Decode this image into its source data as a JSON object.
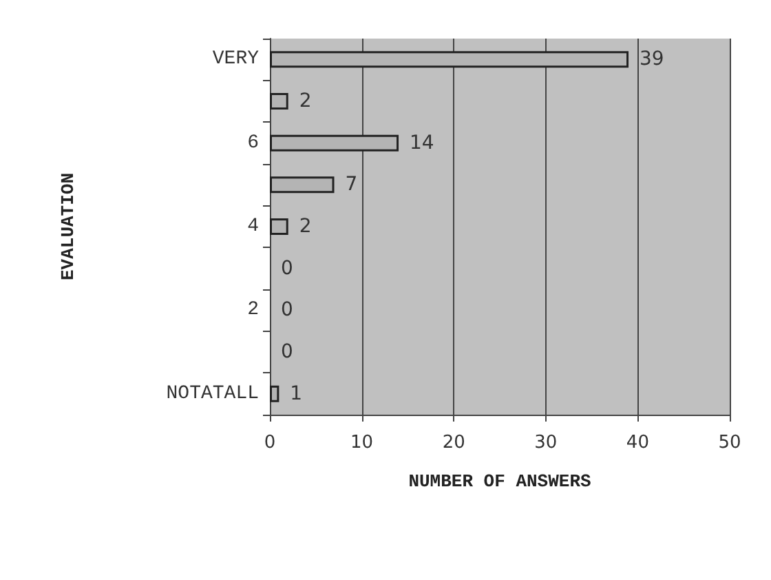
{
  "chart_data": {
    "type": "bar",
    "orientation": "horizontal",
    "xlabel": "NUMBER OF ANSWERS",
    "ylabel": "EVALUATION",
    "categories": [
      "VERY",
      null,
      "6",
      null,
      "4",
      null,
      "2",
      null,
      "NOTATALL"
    ],
    "values": [
      39,
      2,
      14,
      7,
      2,
      0,
      0,
      0,
      1
    ],
    "color": "#b4b4b4",
    "xlim": [
      0,
      50
    ],
    "xticks": [
      0,
      10,
      20,
      30,
      40,
      50
    ],
    "grid": "x",
    "data_labels": true
  }
}
